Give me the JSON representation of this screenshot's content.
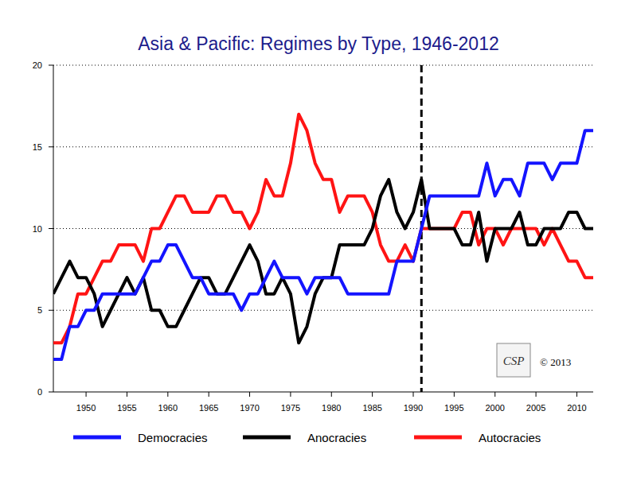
{
  "chart_data": {
    "type": "line",
    "title": "Asia & Pacific: Regimes by Type, 1946-2012",
    "x": [
      1946,
      1947,
      1948,
      1949,
      1950,
      1951,
      1952,
      1953,
      1954,
      1955,
      1956,
      1957,
      1958,
      1959,
      1960,
      1961,
      1962,
      1963,
      1964,
      1965,
      1966,
      1967,
      1968,
      1969,
      1970,
      1971,
      1972,
      1973,
      1974,
      1975,
      1976,
      1977,
      1978,
      1979,
      1980,
      1981,
      1982,
      1983,
      1984,
      1985,
      1986,
      1987,
      1988,
      1989,
      1990,
      1991,
      1992,
      1993,
      1994,
      1995,
      1996,
      1997,
      1998,
      1999,
      2000,
      2001,
      2002,
      2003,
      2004,
      2005,
      2006,
      2007,
      2008,
      2009,
      2010,
      2011,
      2012
    ],
    "series": [
      {
        "name": "Democracies",
        "color": "#1414ff",
        "values": [
          2,
          2,
          4,
          4,
          5,
          5,
          6,
          6,
          6,
          6,
          6,
          7,
          8,
          8,
          9,
          9,
          8,
          7,
          7,
          6,
          6,
          6,
          6,
          5,
          6,
          6,
          7,
          8,
          7,
          7,
          7,
          6,
          7,
          7,
          7,
          7,
          6,
          6,
          6,
          6,
          6,
          6,
          8,
          8,
          8,
          10,
          12,
          12,
          12,
          12,
          12,
          12,
          12,
          14,
          12,
          13,
          13,
          12,
          14,
          14,
          14,
          13,
          14,
          14,
          14,
          16,
          16
        ]
      },
      {
        "name": "Anocracies",
        "color": "#000000",
        "values": [
          6,
          7,
          8,
          7,
          7,
          6,
          4,
          5,
          6,
          7,
          6,
          7,
          5,
          5,
          4,
          4,
          5,
          6,
          7,
          7,
          6,
          6,
          7,
          8,
          9,
          8,
          6,
          6,
          7,
          6,
          3,
          4,
          6,
          7,
          7,
          9,
          9,
          9,
          9,
          10,
          12,
          13,
          11,
          10,
          11,
          13,
          10,
          10,
          10,
          10,
          9,
          9,
          11,
          8,
          10,
          10,
          10,
          11,
          9,
          9,
          10,
          10,
          10,
          11,
          11,
          10,
          10
        ]
      },
      {
        "name": "Autocracies",
        "color": "#ff1414",
        "values": [
          3,
          3,
          4,
          6,
          6,
          7,
          8,
          8,
          9,
          9,
          9,
          8,
          10,
          10,
          11,
          12,
          12,
          11,
          11,
          11,
          12,
          12,
          11,
          11,
          10,
          11,
          13,
          12,
          12,
          14,
          17,
          16,
          14,
          13,
          13,
          11,
          12,
          12,
          12,
          11,
          9,
          8,
          8,
          9,
          8,
          10,
          10,
          10,
          10,
          10,
          11,
          11,
          9,
          10,
          10,
          9,
          10,
          10,
          10,
          10,
          9,
          10,
          9,
          8,
          8,
          7,
          7
        ]
      }
    ],
    "xlim": [
      1946,
      2012
    ],
    "xticks": [
      1950,
      1955,
      1960,
      1965,
      1970,
      1975,
      1980,
      1985,
      1990,
      1995,
      2000,
      2005,
      2010
    ],
    "ylim": [
      0,
      20
    ],
    "yticks": [
      0,
      5,
      10,
      15,
      20
    ],
    "grid": true,
    "legend": "bottom",
    "annotations": [
      {
        "type": "vline",
        "x": 1991,
        "line_style": "dashed"
      },
      {
        "type": "text",
        "text": "© 2013"
      },
      {
        "type": "logo",
        "text": "CSP"
      }
    ]
  }
}
